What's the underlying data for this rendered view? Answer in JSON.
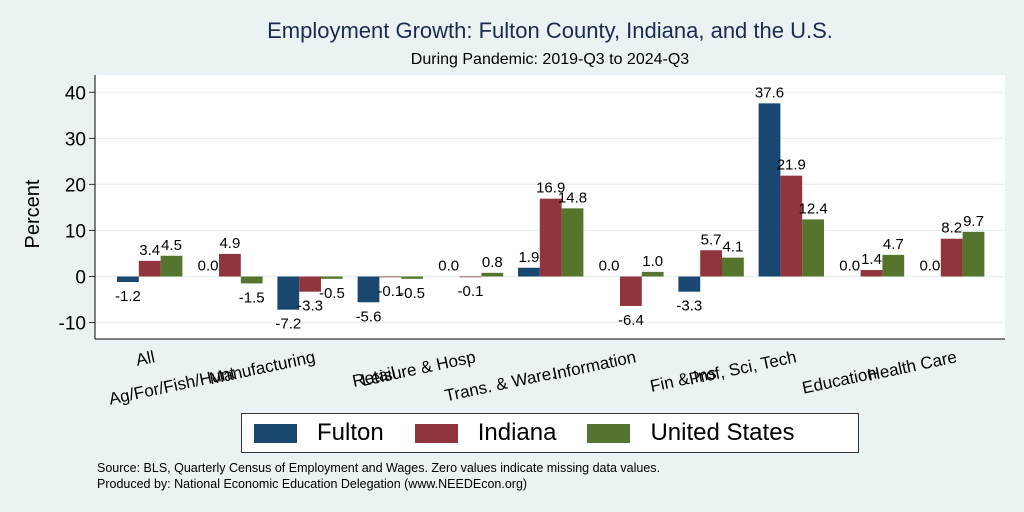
{
  "chart_data": {
    "type": "bar",
    "title": "Employment Growth: Fulton County, Indiana, and the U.S.",
    "subtitle": "During Pandemic: 2019-Q3 to 2024-Q3",
    "xlabel": "",
    "ylabel": "Percent",
    "ylim": [
      -14,
      44
    ],
    "yticks": [
      -10,
      0,
      10,
      20,
      30,
      40
    ],
    "grid": true,
    "legend_position": "bottom",
    "categories": [
      "All",
      "Ag/For/Fish/Hunt",
      "Manufacturing",
      "Retail",
      "Leisure & Hosp",
      "Trans. & Ware.",
      "Information",
      "Fin & Ins",
      "Prof, Sci, Tech",
      "Education",
      "Health Care"
    ],
    "series": [
      {
        "name": "Fulton",
        "color": "#1a476f",
        "values": [
          -1.2,
          0.0,
          -7.2,
          -5.6,
          0.0,
          1.9,
          0.0,
          -3.3,
          37.6,
          0.0,
          0.0
        ]
      },
      {
        "name": "Indiana",
        "color": "#90353b",
        "values": [
          3.4,
          4.9,
          -3.3,
          -0.1,
          -0.1,
          16.9,
          -6.4,
          5.7,
          21.9,
          1.4,
          8.2
        ]
      },
      {
        "name": "United States",
        "color": "#55752f",
        "values": [
          4.5,
          -1.5,
          -0.5,
          -0.5,
          0.8,
          14.8,
          1.0,
          4.1,
          12.4,
          4.7,
          9.7
        ]
      }
    ]
  },
  "notes": {
    "source": "Source: BLS, Quarterly Census of Employment and Wages. Zero values indicate missing data values.",
    "produced": "Produced by: National Economic Education Delegation (www.NEEDEcon.org)"
  }
}
